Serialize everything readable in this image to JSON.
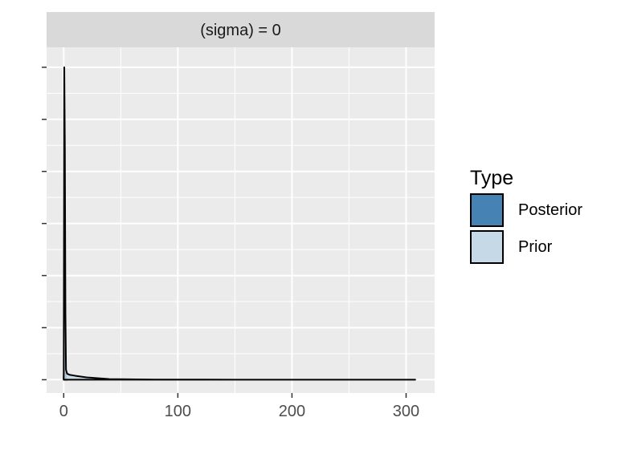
{
  "chart_data": {
    "type": "area",
    "facet_label": "(sigma) = 0",
    "xlabel": "",
    "ylabel": "",
    "xlim": [
      -15,
      325
    ],
    "ylim": [
      -0.04,
      1.0
    ],
    "x_ticks": [
      0,
      100,
      200,
      300
    ],
    "x_tick_labels": [
      "0",
      "100",
      "200",
      "300"
    ],
    "y_ticks_count": 7,
    "y_tick_labels": [],
    "grid": true,
    "legend_title": "Type",
    "legend_position": "right",
    "series": [
      {
        "name": "Posterior",
        "color": "#4682B4",
        "x": [
          0,
          0.5,
          1,
          1.5,
          2,
          2.5,
          3
        ],
        "y": [
          0,
          0.08,
          0.09,
          0.02,
          0.004,
          0.001,
          0
        ]
      },
      {
        "name": "Prior",
        "color": "#C6D9E6",
        "x": [
          0,
          0.5,
          1,
          1.5,
          2,
          3,
          5,
          10,
          20,
          40,
          80,
          150,
          250,
          308
        ],
        "y": [
          0,
          0.94,
          0.7,
          0.2,
          0.03,
          0.018,
          0.015,
          0.012,
          0.007,
          0.002,
          0.0005,
          0.0002,
          0.0001,
          0
        ]
      }
    ]
  }
}
